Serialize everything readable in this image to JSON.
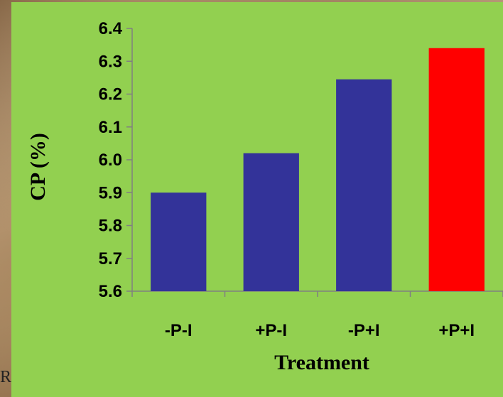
{
  "backdrop": {
    "fragment_text": "RS"
  },
  "chart_data": {
    "type": "bar",
    "title": "",
    "xlabel": "Treatment",
    "ylabel": "CP (%)",
    "categories": [
      "-P-I",
      "+P-I",
      "-P+I",
      "+P+I"
    ],
    "values": [
      5.9,
      6.02,
      6.245,
      6.34
    ],
    "bar_colors": [
      "#333399",
      "#333399",
      "#333399",
      "#ff0000"
    ],
    "ylim": [
      5.6,
      6.4
    ],
    "yticks": [
      "5.6",
      "5.7",
      "5.8",
      "5.9",
      "6.0",
      "6.1",
      "6.2",
      "6.3",
      "6.4"
    ],
    "grid": false,
    "legend": "none"
  }
}
